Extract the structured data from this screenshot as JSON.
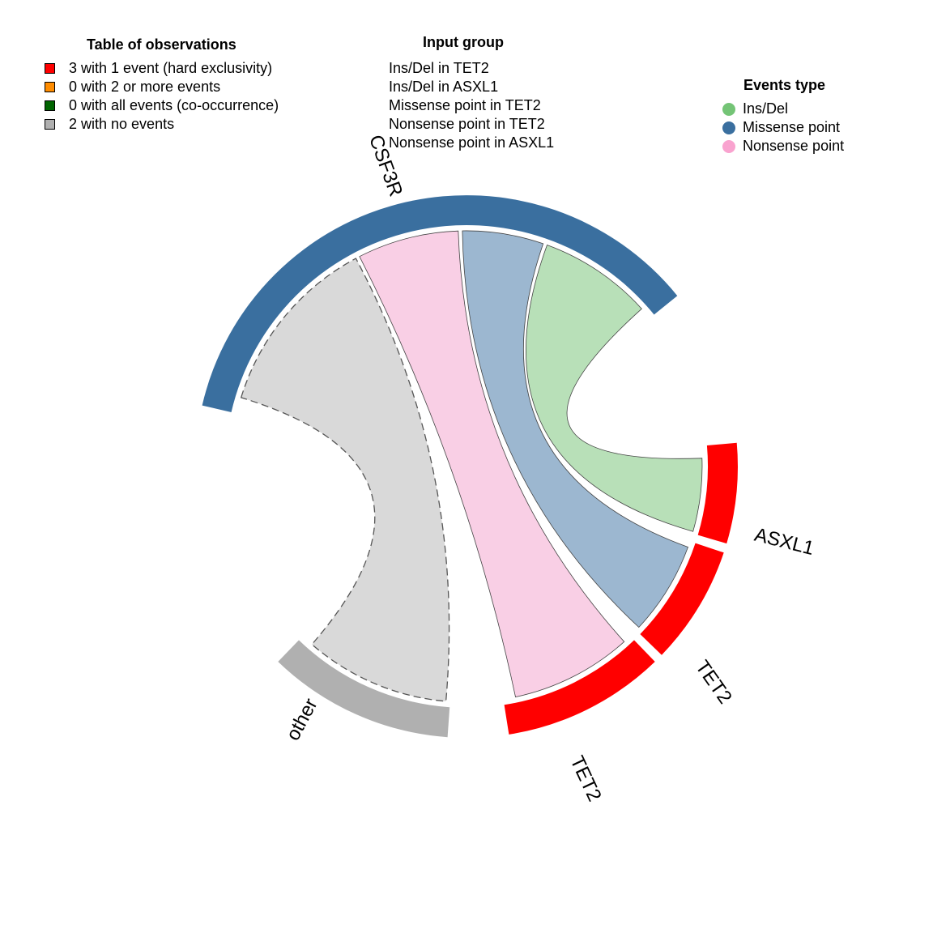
{
  "observations_legend": {
    "title": "Table of observations",
    "items": [
      {
        "label": "3 with 1 event (hard exclusivity)",
        "color": "#ff0000"
      },
      {
        "label": "0 with 2 or more events",
        "color": "#ff8c00"
      },
      {
        "label": "0 with all events (co-occurrence)",
        "color": "#006400"
      },
      {
        "label": "2 with no events",
        "color": "#b0b0b0"
      }
    ]
  },
  "input_group": {
    "title": "Input group",
    "items": [
      "Ins/Del in TET2",
      "Ins/Del in ASXL1",
      "Missense point in TET2",
      "Nonsense point in TET2",
      "Nonsense point in ASXL1"
    ]
  },
  "events_type": {
    "title": "Events type",
    "items": [
      {
        "label": "Ins/Del",
        "color": "#74c476"
      },
      {
        "label": "Missense point",
        "color": "#3a6f9f"
      },
      {
        "label": "Nonsense point",
        "color": "#f9a3cf"
      }
    ]
  },
  "sectors": [
    {
      "label": "CSF3R",
      "color": "#3a6f9f"
    },
    {
      "label": "ASXL1",
      "color": "#ff0000"
    },
    {
      "label": "TET2",
      "color": "#ff0000"
    },
    {
      "label": "TET2",
      "color": "#ff0000"
    },
    {
      "label": "other",
      "color": "#b0b0b0"
    }
  ],
  "ribbons": [
    {
      "from": "CSF3R",
      "to": "ASXL1",
      "type": "Ins/Del",
      "color": "#b8e0b8"
    },
    {
      "from": "CSF3R",
      "to": "TET2",
      "type": "Missense point",
      "color": "#9cb7d0"
    },
    {
      "from": "CSF3R",
      "to": "TET2",
      "type": "Nonsense point",
      "color": "#f9cfe5"
    },
    {
      "from": "CSF3R",
      "to": "other",
      "type": "no events",
      "color": "#d9d9d9"
    }
  ]
}
